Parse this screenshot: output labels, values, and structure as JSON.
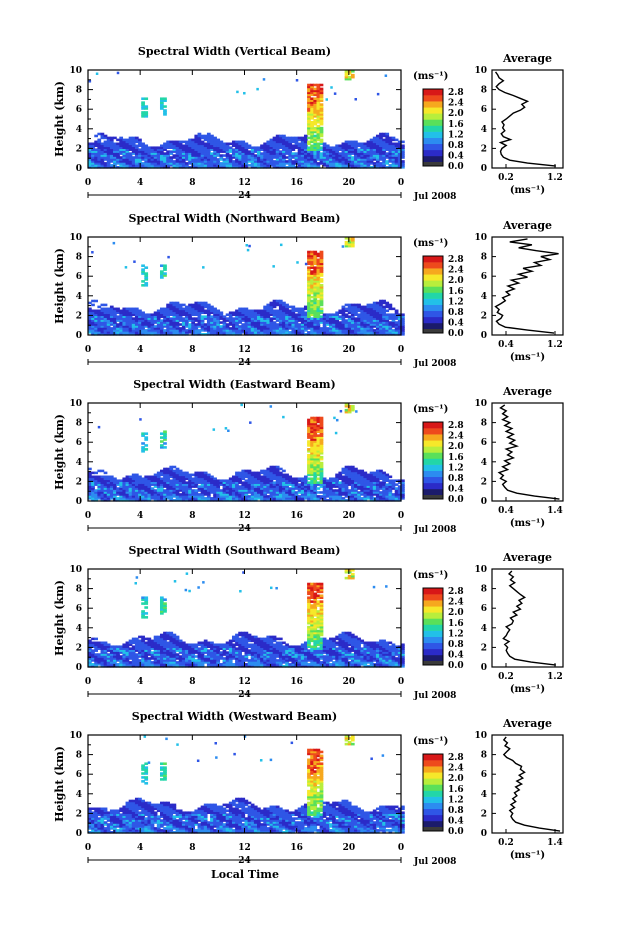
{
  "figure": {
    "xlabel": "Local Time",
    "x_ticks": [
      "0",
      "4",
      "8",
      "12",
      "16",
      "20",
      "0"
    ],
    "day_label": "24",
    "month_label": "Jul 2008",
    "ylabel": "Height (km)",
    "y_ticks": [
      "0",
      "2",
      "4",
      "6",
      "8",
      "10"
    ],
    "colorbar": {
      "unit": "(ms⁻¹)",
      "ticks": [
        "0.0",
        "0.4",
        "0.8",
        "1.2",
        "1.6",
        "2.0",
        "2.4",
        "2.8"
      ],
      "colors": [
        "#1b1b6b",
        "#2b2bc8",
        "#2f56e6",
        "#2c8cf0",
        "#22c0e8",
        "#22d6a8",
        "#5ae05a",
        "#b8ee3c",
        "#f6e82a",
        "#f6a81e",
        "#ee4a1c",
        "#d81818"
      ]
    },
    "average_title": "Average",
    "average_unit": "(ms⁻¹)"
  },
  "chart_data": [
    {
      "type": "heatmap",
      "title": "Spectral Width (Vertical Beam)",
      "xlabel": "Local Time",
      "ylabel": "Height (km)",
      "xlim": [
        0,
        24
      ],
      "ylim": [
        0,
        10
      ],
      "clim": [
        0.0,
        2.8
      ],
      "profile": {
        "title": "Average",
        "xlabel": "(ms⁻¹)",
        "xlim": [
          0.2,
          1.2
        ],
        "x_ticks": [
          "0.2",
          "1.2"
        ],
        "height": [
          0.2,
          0.5,
          0.8,
          1.1,
          1.4,
          1.7,
          2.0,
          2.3,
          2.6,
          2.9,
          3.2,
          3.5,
          3.8,
          4.1,
          4.4,
          4.7,
          5.0,
          5.3,
          5.6,
          5.9,
          6.2,
          6.5,
          6.8,
          7.1,
          7.4,
          7.7,
          8.0,
          8.3,
          8.6,
          8.9,
          9.2,
          9.5,
          9.8
        ],
        "value": [
          1.1,
          0.7,
          0.45,
          0.36,
          0.33,
          0.32,
          0.34,
          0.4,
          0.32,
          0.46,
          0.36,
          0.33,
          0.38,
          0.35,
          0.37,
          0.34,
          0.4,
          0.45,
          0.5,
          0.6,
          0.66,
          0.62,
          0.7,
          0.6,
          0.5,
          0.38,
          0.3,
          0.26,
          0.3,
          0.36,
          0.3,
          0.28,
          0.25
        ]
      }
    },
    {
      "type": "heatmap",
      "title": "Spectral Width (Northward Beam)",
      "xlabel": "Local Time",
      "ylabel": "Height (km)",
      "xlim": [
        0,
        24
      ],
      "ylim": [
        0,
        10
      ],
      "clim": [
        0.0,
        2.8
      ],
      "profile": {
        "title": "Average",
        "xlabel": "(ms⁻¹)",
        "xlim": [
          0.4,
          1.2
        ],
        "x_ticks": [
          "0.4",
          "1.2"
        ],
        "height": [
          0.2,
          0.5,
          0.8,
          1.1,
          1.4,
          1.7,
          2.0,
          2.3,
          2.6,
          2.9,
          3.2,
          3.5,
          3.8,
          4.1,
          4.4,
          4.7,
          5.0,
          5.3,
          5.6,
          5.9,
          6.2,
          6.5,
          6.8,
          7.1,
          7.4,
          7.7,
          8.0,
          8.3,
          8.6,
          8.9,
          9.2,
          9.5,
          9.8
        ],
        "value": [
          1.1,
          0.8,
          0.55,
          0.48,
          0.45,
          0.5,
          0.52,
          0.46,
          0.48,
          0.44,
          0.5,
          0.55,
          0.52,
          0.6,
          0.56,
          0.65,
          0.58,
          0.7,
          0.62,
          0.8,
          0.7,
          0.85,
          0.75,
          0.95,
          0.88,
          1.05,
          0.95,
          1.15,
          0.9,
          0.7,
          0.85,
          0.6,
          0.8
        ]
      }
    },
    {
      "type": "heatmap",
      "title": "Spectral Width (Eastward Beam)",
      "xlabel": "Local Time",
      "ylabel": "Height (km)",
      "xlim": [
        0,
        24
      ],
      "ylim": [
        0,
        10
      ],
      "clim": [
        0.0,
        2.8
      ],
      "profile": {
        "title": "Average",
        "xlabel": "(ms⁻¹)",
        "xlim": [
          0.4,
          1.4
        ],
        "x_ticks": [
          "0.4",
          "1.4"
        ],
        "height": [
          0.2,
          0.5,
          0.8,
          1.1,
          1.4,
          1.7,
          2.0,
          2.3,
          2.6,
          2.9,
          3.2,
          3.5,
          3.8,
          4.1,
          4.4,
          4.7,
          5.0,
          5.3,
          5.6,
          5.9,
          6.2,
          6.5,
          6.8,
          7.1,
          7.4,
          7.7,
          8.0,
          8.3,
          8.6,
          8.9,
          9.2,
          9.5,
          9.8
        ],
        "value": [
          1.35,
          1.0,
          0.75,
          0.62,
          0.58,
          0.55,
          0.6,
          0.52,
          0.56,
          0.5,
          0.62,
          0.55,
          0.65,
          0.58,
          0.7,
          0.62,
          0.68,
          0.6,
          0.75,
          0.65,
          0.72,
          0.62,
          0.7,
          0.6,
          0.68,
          0.58,
          0.65,
          0.55,
          0.62,
          0.55,
          0.6,
          0.52,
          0.58
        ]
      }
    },
    {
      "type": "heatmap",
      "title": "Spectral Width (Southward Beam)",
      "xlabel": "Local Time",
      "ylabel": "Height (km)",
      "xlim": [
        0,
        24
      ],
      "ylim": [
        0,
        10
      ],
      "clim": [
        0.0,
        2.8
      ],
      "profile": {
        "title": "Average",
        "xlabel": "(ms⁻¹)",
        "xlim": [
          0.2,
          1.2
        ],
        "x_ticks": [
          "0.2",
          "1.2"
        ],
        "height": [
          0.2,
          0.5,
          0.8,
          1.1,
          1.4,
          1.7,
          2.0,
          2.3,
          2.6,
          2.9,
          3.2,
          3.5,
          3.8,
          4.1,
          4.4,
          4.7,
          5.0,
          5.3,
          5.6,
          5.9,
          6.2,
          6.5,
          6.8,
          7.1,
          7.4,
          7.7,
          8.0,
          8.3,
          8.6,
          8.9,
          9.2,
          9.5,
          9.8
        ],
        "value": [
          1.1,
          0.75,
          0.52,
          0.45,
          0.42,
          0.4,
          0.42,
          0.38,
          0.44,
          0.36,
          0.4,
          0.42,
          0.45,
          0.4,
          0.48,
          0.5,
          0.46,
          0.55,
          0.5,
          0.6,
          0.55,
          0.62,
          0.58,
          0.66,
          0.6,
          0.55,
          0.5,
          0.45,
          0.52,
          0.46,
          0.5,
          0.44,
          0.48
        ]
      }
    },
    {
      "type": "heatmap",
      "title": "Spectral Width (Westward Beam)",
      "xlabel": "Local Time",
      "ylabel": "Height (km)",
      "xlim": [
        0,
        24
      ],
      "ylim": [
        0,
        10
      ],
      "clim": [
        0.0,
        2.8
      ],
      "profile": {
        "title": "Average",
        "xlabel": "(ms⁻¹)",
        "xlim": [
          0.2,
          1.4
        ],
        "x_ticks": [
          "0.2",
          "1.4"
        ],
        "height": [
          0.2,
          0.5,
          0.8,
          1.1,
          1.4,
          1.7,
          2.0,
          2.3,
          2.6,
          2.9,
          3.2,
          3.5,
          3.8,
          4.1,
          4.4,
          4.7,
          5.0,
          5.3,
          5.6,
          5.9,
          6.2,
          6.5,
          6.8,
          7.1,
          7.4,
          7.7,
          8.0,
          8.3,
          8.6,
          8.9,
          9.2,
          9.5,
          9.8
        ],
        "value": [
          1.35,
          1.0,
          0.75,
          0.6,
          0.55,
          0.52,
          0.55,
          0.5,
          0.58,
          0.52,
          0.6,
          0.55,
          0.62,
          0.58,
          0.66,
          0.6,
          0.7,
          0.62,
          0.72,
          0.66,
          0.75,
          0.68,
          0.7,
          0.6,
          0.55,
          0.45,
          0.4,
          0.45,
          0.5,
          0.42,
          0.46,
          0.4,
          0.44
        ]
      }
    }
  ]
}
